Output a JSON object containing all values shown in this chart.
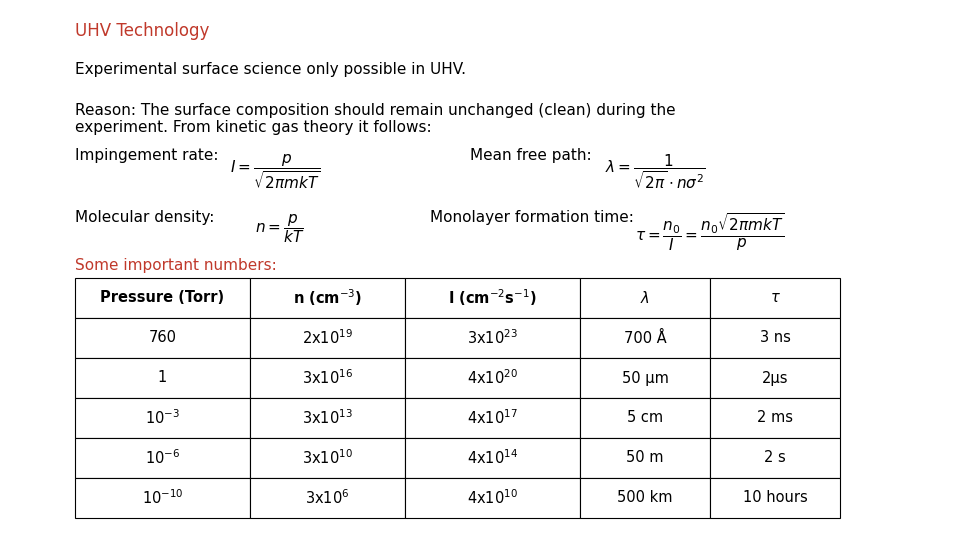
{
  "title": "UHV Technology",
  "title_color": "#c0392b",
  "bg_color": "#ffffff",
  "line1": "Experimental surface science only possible in UHV.",
  "line2": "Reason: The surface composition should remain unchanged (clean) during the",
  "line3": "experiment. From kinetic gas theory it follows:",
  "impingement_label": "Impingement rate:",
  "mfp_label": "Mean free path:",
  "mol_density_label": "Molecular density:",
  "monolayer_label": "Monolayer formation time:",
  "some_numbers": "Some important numbers:",
  "some_numbers_color": "#c0392b",
  "table_headers": [
    "Pressure (Torr)",
    "n (cm$^{-3}$)",
    "I (cm$^{-2}$s$^{-1}$)",
    "$\\lambda$",
    "$\\tau$"
  ],
  "table_data": [
    [
      "760",
      "2x10$^{19}$",
      "3x10$^{23}$",
      "700 Å",
      "3 ns"
    ],
    [
      "1",
      "3x10$^{16}$",
      "4x10$^{20}$",
      "50 μm",
      "2μs"
    ],
    [
      "10$^{-3}$",
      "3x10$^{13}$",
      "4x10$^{17}$",
      "5 cm",
      "2 ms"
    ],
    [
      "10$^{-6}$",
      "3x10$^{10}$",
      "4x10$^{14}$",
      "50 m",
      "2 s"
    ],
    [
      "10$^{-10}$",
      "3x10$^{6}$",
      "4x10$^{10}$",
      "500 km",
      "10 hours"
    ]
  ]
}
